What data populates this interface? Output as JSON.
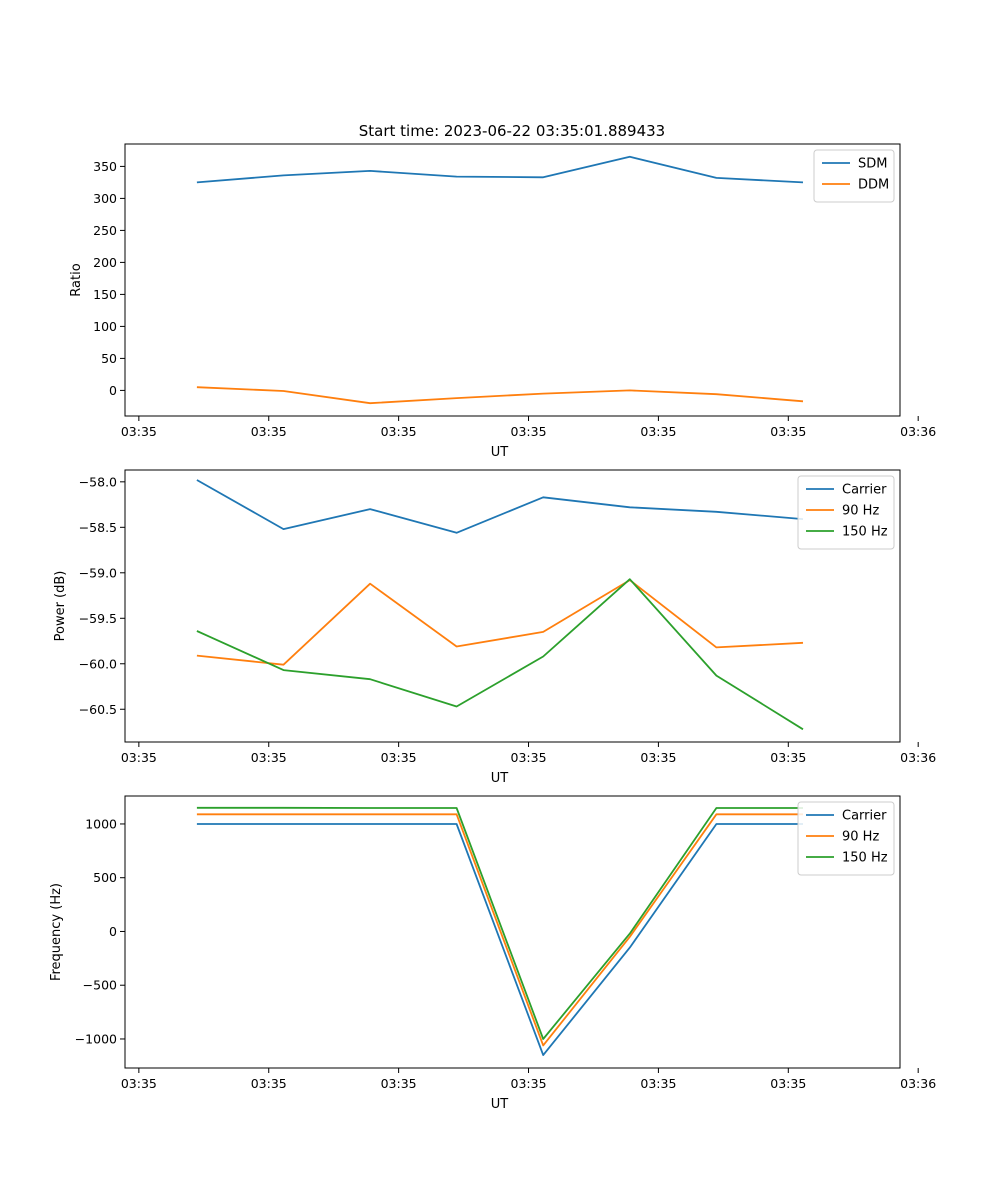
{
  "figure": {
    "title": "Start time: 2023-06-22 03:35:01.889433"
  },
  "chart_data": [
    {
      "type": "line",
      "title": "Start time: 2023-06-22 03:35:01.889433",
      "xlabel": "UT",
      "ylabel": "Ratio",
      "x_tick_labels": [
        "03:35",
        "03:35",
        "03:35",
        "03:35",
        "03:35",
        "03:35",
        "03:36"
      ],
      "y_ticks": [
        0,
        50,
        100,
        150,
        200,
        250,
        300,
        350
      ],
      "y_tick_labels": [
        "0",
        "50",
        "100",
        "150",
        "200",
        "250",
        "300",
        "350"
      ],
      "ylim": [
        -40,
        385
      ],
      "legend": "top-right",
      "x": [
        1,
        2,
        3,
        4,
        5,
        6,
        7,
        8
      ],
      "xlim": [
        0.17,
        9.12
      ],
      "x_ticks": [
        0.33,
        1.83,
        3.33,
        4.83,
        6.33,
        7.83,
        9.33
      ],
      "series": [
        {
          "name": "SDM",
          "color": "#1f77b4",
          "values": [
            325,
            336,
            343,
            334,
            333,
            365,
            332,
            325
          ]
        },
        {
          "name": "DDM",
          "color": "#ff7f0e",
          "values": [
            5,
            -1,
            -20,
            -12,
            -5,
            0,
            -6,
            -17
          ]
        }
      ]
    },
    {
      "type": "line",
      "xlabel": "UT",
      "ylabel": "Power (dB)",
      "x_tick_labels": [
        "03:35",
        "03:35",
        "03:35",
        "03:35",
        "03:35",
        "03:35",
        "03:36"
      ],
      "y_ticks": [
        -60.5,
        -60.0,
        -59.5,
        -59.0,
        -58.5,
        -58.0
      ],
      "y_tick_labels": [
        "−60.5",
        "−60.0",
        "−59.5",
        "−59.0",
        "−58.5",
        "−58.0"
      ],
      "ylim": [
        -60.86,
        -57.87
      ],
      "legend": "top-right",
      "x": [
        1,
        2,
        3,
        4,
        5,
        6,
        7,
        8
      ],
      "xlim": [
        0.17,
        9.12
      ],
      "x_ticks": [
        0.33,
        1.83,
        3.33,
        4.83,
        6.33,
        7.83,
        9.33
      ],
      "series": [
        {
          "name": "Carrier",
          "color": "#1f77b4",
          "values": [
            -57.98,
            -58.52,
            -58.3,
            -58.56,
            -58.17,
            -58.28,
            -58.33,
            -58.41
          ]
        },
        {
          "name": "90 Hz",
          "color": "#ff7f0e",
          "values": [
            -59.91,
            -60.01,
            -59.12,
            -59.81,
            -59.65,
            -59.08,
            -59.82,
            -59.77
          ]
        },
        {
          "name": "150 Hz",
          "color": "#2ca02c",
          "values": [
            -59.64,
            -60.07,
            -60.17,
            -60.47,
            -59.92,
            -59.07,
            -60.13,
            -60.72
          ]
        }
      ]
    },
    {
      "type": "line",
      "xlabel": "UT",
      "ylabel": "Frequency (Hz)",
      "x_tick_labels": [
        "03:35",
        "03:35",
        "03:35",
        "03:35",
        "03:35",
        "03:35",
        "03:36"
      ],
      "y_ticks": [
        -1000,
        -500,
        0,
        500,
        1000
      ],
      "y_tick_labels": [
        "−1000",
        "−500",
        "0",
        "500",
        "1000"
      ],
      "ylim": [
        -1270,
        1260
      ],
      "legend": "top-right",
      "x": [
        1,
        2,
        3,
        4,
        5,
        6,
        7,
        8
      ],
      "xlim": [
        0.17,
        9.12
      ],
      "x_ticks": [
        0.33,
        1.83,
        3.33,
        4.83,
        6.33,
        7.83,
        9.33
      ],
      "series": [
        {
          "name": "Carrier",
          "color": "#1f77b4",
          "values": [
            1000,
            1000,
            1000,
            1000,
            -1150,
            -150,
            1000,
            1000
          ]
        },
        {
          "name": "90 Hz",
          "color": "#ff7f0e",
          "values": [
            1090,
            1090,
            1090,
            1090,
            -1060,
            -50,
            1090,
            1090
          ]
        },
        {
          "name": "150 Hz",
          "color": "#2ca02c",
          "values": [
            1150,
            1150,
            1148,
            1148,
            -1000,
            -20,
            1148,
            1148
          ]
        }
      ]
    }
  ]
}
